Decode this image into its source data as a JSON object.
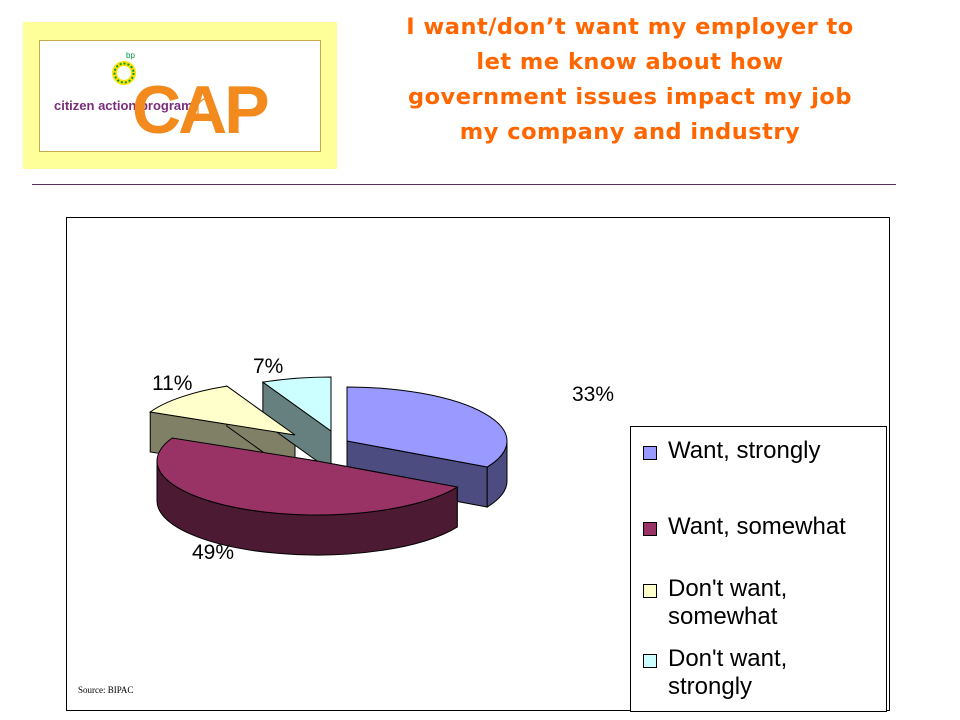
{
  "logo": {
    "bp_text": "bp",
    "tagline": "citizen action program",
    "wordmark": "CAP",
    "colors": {
      "orange": "#f28a1d",
      "green": "#009a3e",
      "yellow": "#ffe100",
      "tagline": "#7a2e7a"
    }
  },
  "title": "I want/don’t want my employer to\nlet me know about how\ngovernment issues impact my job\nmy company and industry",
  "source": "Source: BIPAC",
  "chart_data": {
    "type": "pie",
    "style": "3d-exploded",
    "slices": [
      {
        "label": "Want, strongly",
        "value": 33,
        "data_label": "33%",
        "color": "#9999ff",
        "side_color": "#4c4c80"
      },
      {
        "label": "Want, somewhat",
        "value": 49,
        "data_label": "49%",
        "color": "#993366",
        "side_color": "#4c1a33"
      },
      {
        "label": "Don't want,\nsomewhat",
        "value": 11,
        "data_label": "11%",
        "color": "#ffffcc",
        "side_color": "#808066"
      },
      {
        "label": "Don't want,\nstrongly",
        "value": 7,
        "data_label": "7%",
        "color": "#ccffff",
        "side_color": "#668080"
      }
    ],
    "legend_position": "right"
  }
}
